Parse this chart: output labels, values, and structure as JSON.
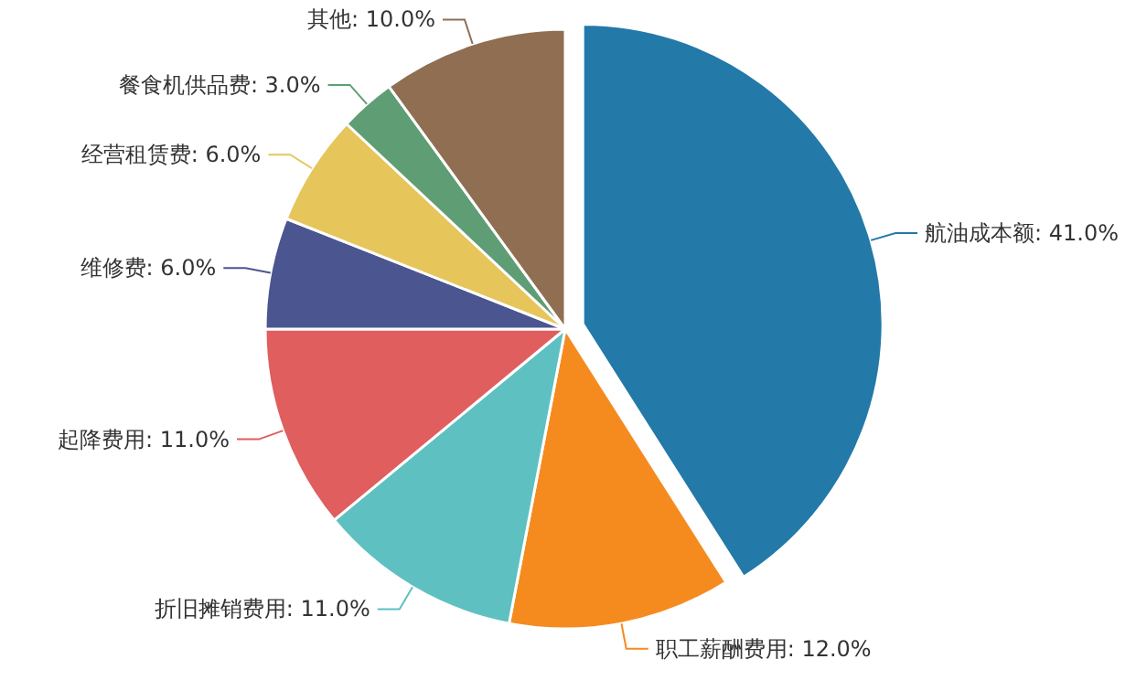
{
  "chart_data": {
    "type": "pie",
    "categories": [
      "航油成本额",
      "职工薪酬费用",
      "折旧摊销费用",
      "起降费用",
      "维修费",
      "经营租赁费",
      "餐食机供品费",
      "其他"
    ],
    "values": [
      41,
      12,
      11,
      11,
      6,
      6,
      3,
      10
    ],
    "value_labels": [
      "41.0%",
      "12.0%",
      "11.0%",
      "11.0%",
      "6.0%",
      "6.0%",
      "3.0%",
      "10.0%"
    ],
    "colors": [
      "#2379a8",
      "#f58b1f",
      "#5fc0c1",
      "#e05e5e",
      "#4b5590",
      "#e6c55b",
      "#5f9e74",
      "#8f6e52"
    ]
  }
}
